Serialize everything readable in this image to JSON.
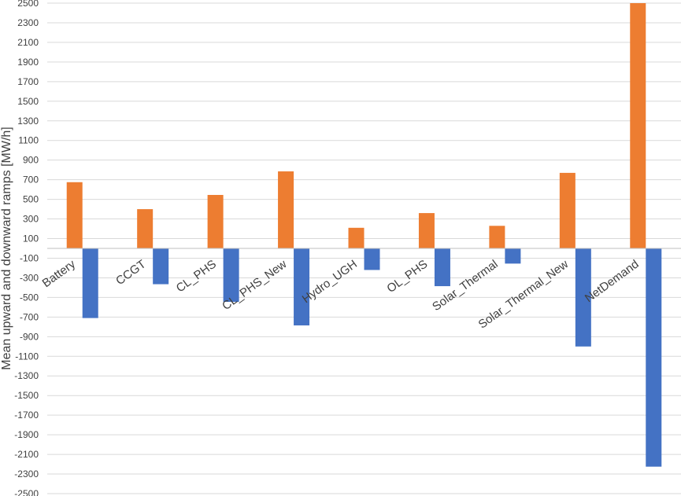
{
  "chart_data": {
    "type": "bar",
    "title": "",
    "xlabel": "",
    "ylabel": "Mean upward and downward ramps [MW/h]",
    "ylim": [
      -2500,
      2500
    ],
    "ytick_step": 200,
    "ytick_start": -2500,
    "grid": true,
    "legend": "none",
    "categories": [
      "Battery",
      "CCGT",
      "CL_PHS",
      "CL_PHS_New",
      "Hydro_UGH",
      "OL_PHS",
      "Solar_Thermal",
      "Solar_Thermal_New",
      "NetDemand"
    ],
    "series": [
      {
        "color": "#ED7D31",
        "values": [
          675,
          400,
          545,
          785,
          210,
          360,
          230,
          770,
          2500
        ]
      },
      {
        "color": "#4472C4",
        "values": [
          -710,
          -365,
          -545,
          -785,
          -220,
          -385,
          -155,
          -1000,
          -2225
        ]
      }
    ]
  }
}
